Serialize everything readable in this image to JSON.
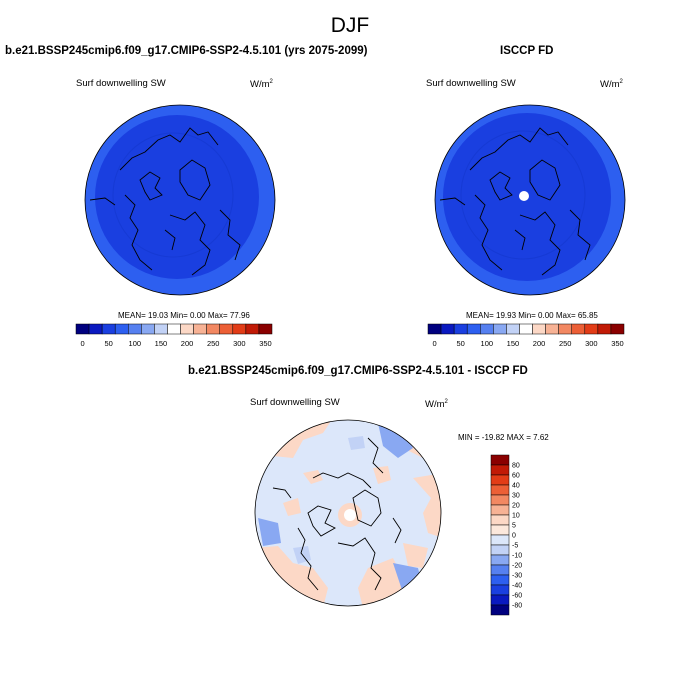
{
  "figure": {
    "title": "DJF"
  },
  "panels": [
    {
      "title": "b.e21.BSSP245cmip6.f09_g17.CMIP6-SSP2-4.5.101 (yrs 2075-2099)",
      "variable": "Surf downwelling SW",
      "units_base": "W/m",
      "units_exp": "2",
      "stats": "MEAN=  19.03  Min=   0.00  Max=  77.96"
    },
    {
      "title": "ISCCP FD",
      "variable": "Surf downwelling SW",
      "units_base": "W/m",
      "units_exp": "2",
      "stats": "MEAN=  19.93  Min=   0.00  Max=  65.85"
    },
    {
      "title": "b.e21.BSSP245cmip6.f09_g17.CMIP6-SSP2-4.5.101 - ISCCP FD",
      "variable": "Surf downwelling SW",
      "units_base": "W/m",
      "units_exp": "2",
      "stats": "MIN = -19.82 MAX =   7.62"
    }
  ],
  "chart_data": {
    "type": "heatmap",
    "projection": "north polar stereographic",
    "maps": [
      {
        "field": "model",
        "levels": [
          0,
          25,
          50,
          75,
          100,
          125,
          150,
          175,
          200,
          225,
          250,
          275,
          300,
          325,
          350
        ],
        "colorbar_labels": [
          "0",
          "50",
          "100",
          "150",
          "200",
          "250",
          "300",
          "350"
        ],
        "colors": [
          "#00007f",
          "#0a19c0",
          "#1a3fe0",
          "#2d5ff0",
          "#5680f0",
          "#89a8f2",
          "#c2d2f6",
          "#ffffff",
          "#fcd8c6",
          "#f7b295",
          "#f28862",
          "#ec5f36",
          "#e23c17",
          "#c11a06",
          "#8a0000"
        ],
        "mean": 19.03,
        "min": 0.0,
        "max": 77.96
      },
      {
        "field": "observations",
        "levels": [
          0,
          25,
          50,
          75,
          100,
          125,
          150,
          175,
          200,
          225,
          250,
          275,
          300,
          325,
          350
        ],
        "colorbar_labels": [
          "0",
          "50",
          "100",
          "150",
          "200",
          "250",
          "300",
          "350"
        ],
        "colors": [
          "#00007f",
          "#0a19c0",
          "#1a3fe0",
          "#2d5ff0",
          "#5680f0",
          "#89a8f2",
          "#c2d2f6",
          "#ffffff",
          "#fcd8c6",
          "#f7b295",
          "#f28862",
          "#ec5f36",
          "#e23c17",
          "#c11a06",
          "#8a0000"
        ],
        "mean": 19.93,
        "min": 0.0,
        "max": 65.85
      },
      {
        "field": "difference",
        "levels": [
          -80,
          -60,
          -40,
          -30,
          -20,
          -10,
          -5,
          0,
          5,
          10,
          20,
          30,
          40,
          60,
          80
        ],
        "colorbar_labels": [
          "80",
          "60",
          "40",
          "30",
          "20",
          "10",
          "5",
          "0",
          "-5",
          "-10",
          "-20",
          "-30",
          "-40",
          "-60",
          "-80"
        ],
        "colors": [
          "#8a0000",
          "#c11a06",
          "#e23c17",
          "#ec5f36",
          "#f28862",
          "#f7b295",
          "#fcd8c6",
          "#fce8dc",
          "#dce7fa",
          "#c2d2f6",
          "#89a8f2",
          "#5680f0",
          "#2d5ff0",
          "#1a3fe0",
          "#0a19c0",
          "#00007f"
        ],
        "min": -19.82,
        "max": 7.62
      }
    ]
  }
}
